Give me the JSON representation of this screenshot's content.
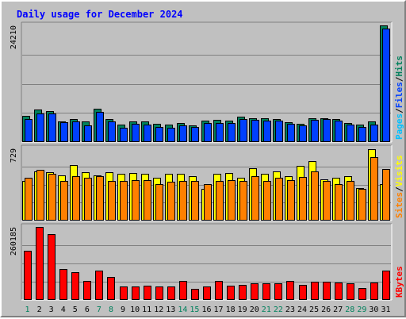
{
  "title": "Daily usage for December 2024",
  "colors": {
    "background": "#c0c0c0",
    "plot": "#c0c0c0",
    "gridline": "#808080",
    "title": "#0000ff",
    "hits": "#00805c",
    "files": "#0040ff",
    "pages": "#00c0ff",
    "visits": "#ffff00",
    "sites": "#ff8000",
    "kbytes": "#ff0000",
    "weekday_label": "#000000",
    "weekend_label": "#00805c"
  },
  "chart_data": [
    {
      "type": "bar",
      "panel": "hits_files_pages",
      "ylabel_text": "24210",
      "ylim": [
        0,
        24210
      ],
      "right_labels": [
        {
          "text": "Hits",
          "color": "#00805c"
        },
        {
          "text": "/",
          "color": "#000000"
        },
        {
          "text": "Files",
          "color": "#0040ff"
        },
        {
          "text": "/",
          "color": "#000000"
        },
        {
          "text": "Pages",
          "color": "#00c0ff"
        }
      ],
      "categories": [
        "1",
        "2",
        "3",
        "4",
        "5",
        "6",
        "7",
        "8",
        "9",
        "10",
        "11",
        "12",
        "13",
        "14",
        "15",
        "16",
        "17",
        "18",
        "19",
        "20",
        "21",
        "22",
        "23",
        "24",
        "25",
        "26",
        "27",
        "28",
        "29",
        "30",
        "31"
      ],
      "series": [
        {
          "name": "Hits",
          "values": [
            5500,
            6700,
            6400,
            4300,
            4700,
            4200,
            6900,
            4800,
            3700,
            4200,
            4200,
            3800,
            3600,
            4000,
            3500,
            4400,
            4600,
            4400,
            5300,
            4900,
            4900,
            4700,
            4100,
            3800,
            5000,
            5000,
            4800,
            3900,
            3700,
            4300,
            24200
          ]
        },
        {
          "name": "Files",
          "values": [
            4700,
            5900,
            5900,
            4100,
            4300,
            3500,
            6300,
            4300,
            2900,
            3800,
            3600,
            3200,
            3000,
            3400,
            3200,
            4000,
            3900,
            4000,
            4700,
            4600,
            4500,
            4500,
            3800,
            3500,
            4600,
            4800,
            4400,
            3600,
            3200,
            3700,
            23600
          ]
        }
      ]
    },
    {
      "type": "bar",
      "panel": "visits_sites",
      "ylabel_text": "729",
      "ylim": [
        0,
        729
      ],
      "right_labels": [
        {
          "text": "Visits",
          "color": "#ffff00"
        },
        {
          "text": "/",
          "color": "#000000"
        },
        {
          "text": "Sites",
          "color": "#ff8000"
        }
      ],
      "categories": [
        "1",
        "2",
        "3",
        "4",
        "5",
        "6",
        "7",
        "8",
        "9",
        "10",
        "11",
        "12",
        "13",
        "14",
        "15",
        "16",
        "17",
        "18",
        "19",
        "20",
        "21",
        "22",
        "23",
        "24",
        "25",
        "26",
        "27",
        "28",
        "29",
        "30",
        "31"
      ],
      "series": [
        {
          "name": "Visits",
          "values": [
            400,
            495,
            490,
            460,
            560,
            490,
            460,
            490,
            470,
            480,
            470,
            430,
            470,
            470,
            450,
            320,
            470,
            480,
            430,
            530,
            470,
            500,
            450,
            550,
            600,
            420,
            430,
            450,
            330,
            720,
            370
          ]
        },
        {
          "name": "Sites",
          "values": [
            430,
            510,
            470,
            400,
            450,
            430,
            450,
            400,
            400,
            410,
            410,
            370,
            390,
            400,
            400,
            370,
            400,
            410,
            400,
            450,
            400,
            430,
            410,
            440,
            500,
            400,
            370,
            400,
            320,
            640,
            520
          ]
        }
      ]
    },
    {
      "type": "bar",
      "panel": "kbytes",
      "ylabel_text": "260185",
      "ylim": [
        0,
        260185
      ],
      "right_labels": [
        {
          "text": "KBytes",
          "color": "#ff0000"
        }
      ],
      "categories": [
        "1",
        "2",
        "3",
        "4",
        "5",
        "6",
        "7",
        "8",
        "9",
        "10",
        "11",
        "12",
        "13",
        "14",
        "15",
        "16",
        "17",
        "18",
        "19",
        "20",
        "21",
        "22",
        "23",
        "24",
        "25",
        "26",
        "27",
        "28",
        "29",
        "30",
        "31"
      ],
      "series": [
        {
          "name": "KBytes",
          "values": [
            175000,
            260185,
            235000,
            110000,
            100000,
            68000,
            105000,
            82000,
            47000,
            47000,
            52000,
            49000,
            47000,
            68000,
            40000,
            47000,
            68000,
            50000,
            55000,
            60000,
            59000,
            60000,
            68000,
            55000,
            65000,
            65000,
            63000,
            58000,
            43000,
            62000,
            105000
          ]
        }
      ]
    }
  ],
  "weekend_days": [
    1,
    7,
    8,
    14,
    15,
    21,
    22,
    28,
    29
  ]
}
